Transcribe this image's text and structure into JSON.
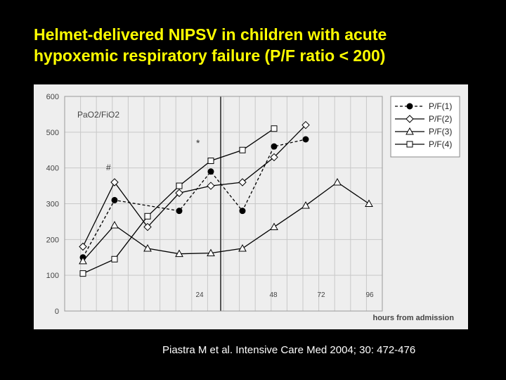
{
  "slide": {
    "title_line1": "Helmet-delivered NIPSV in children with acute",
    "title_line2": "hypoxemic respiratory failure (P/F ratio < 200)",
    "citation": "Piastra M et al.  Intensive Care Med 2004; 30: 472-476"
  },
  "chart_data": {
    "type": "line",
    "ylabel": "PaO2/FiO2",
    "xlabel": "hours from admission",
    "ylim": [
      0,
      600
    ],
    "yticks": [
      "0",
      "100",
      "200",
      "300",
      "400",
      "500",
      "600"
    ],
    "x_time_labels": [
      "24",
      "48",
      "72",
      "96"
    ],
    "grid": true,
    "legend_position": "top-right",
    "annotations": [
      "*",
      "#"
    ],
    "series": [
      {
        "name": "P/F(1)",
        "marker": "filled-circle",
        "line": "dashed",
        "values": [
          150,
          310,
          null,
          280,
          390,
          280,
          460,
          480,
          null,
          null
        ]
      },
      {
        "name": "P/F(2)",
        "marker": "diamond",
        "line": "solid",
        "values": [
          180,
          360,
          235,
          330,
          350,
          360,
          430,
          520,
          null,
          null
        ]
      },
      {
        "name": "P/F(3)",
        "marker": "triangle",
        "line": "solid",
        "values": [
          140,
          240,
          175,
          160,
          162,
          175,
          235,
          295,
          360,
          300
        ]
      },
      {
        "name": "P/F(4)",
        "marker": "square",
        "line": "solid",
        "values": [
          105,
          145,
          265,
          350,
          420,
          450,
          510,
          null,
          null,
          null
        ]
      }
    ],
    "colors": {
      "panel": "#eeeeee",
      "grid": "#c8c8c8",
      "line": "#000000",
      "axis_text": "#444444",
      "title": "#ffff00"
    }
  }
}
